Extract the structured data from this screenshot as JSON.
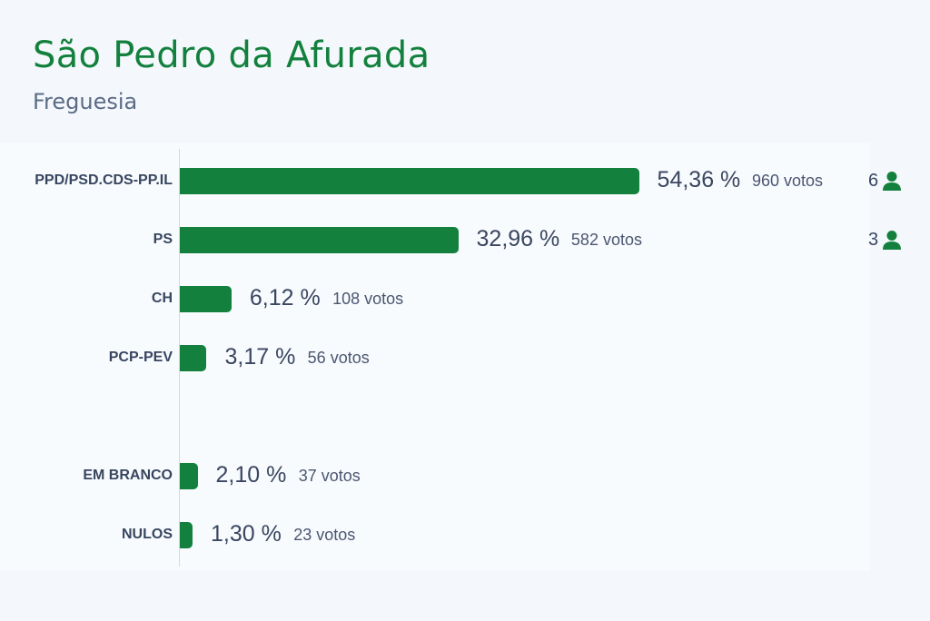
{
  "header": {
    "title": "São Pedro da Afurada",
    "subtitle": "Freguesia"
  },
  "colors": {
    "bar": "#13813d",
    "title": "#13813d",
    "icon": "#13813d"
  },
  "chart_data": {
    "type": "bar",
    "orientation": "horizontal",
    "title": "São Pedro da Afurada",
    "subtitle": "Freguesia",
    "categories": [
      "PPD/PSD.CDS-PP.IL",
      "PS",
      "CH",
      "PCP-PEV",
      "EM BRANCO",
      "NULOS"
    ],
    "values": [
      54.36,
      32.96,
      6.12,
      3.17,
      2.1,
      1.3
    ],
    "series": [
      {
        "values": [
          54.36,
          32.96,
          6.12,
          3.17,
          2.1,
          1.3
        ]
      }
    ],
    "rows": [
      {
        "label": "PPD/PSD.CDS-PP.IL",
        "pct": 54.36,
        "pct_text": "54,36 %",
        "votes_text": "960 votos",
        "seats": "6",
        "group": 0
      },
      {
        "label": "PS",
        "pct": 32.96,
        "pct_text": "32,96 %",
        "votes_text": "582 votos",
        "seats": "3",
        "group": 0
      },
      {
        "label": "CH",
        "pct": 6.12,
        "pct_text": "6,12 %",
        "votes_text": "108 votos",
        "seats": "",
        "group": 0
      },
      {
        "label": "PCP-PEV",
        "pct": 3.17,
        "pct_text": "3,17 %",
        "votes_text": "56 votos",
        "seats": "",
        "group": 0
      },
      {
        "label": "EM BRANCO",
        "pct": 2.1,
        "pct_text": "2,10 %",
        "votes_text": "37 votos",
        "seats": "",
        "group": 1
      },
      {
        "label": "NULOS",
        "pct": 1.3,
        "pct_text": "1,30 %",
        "votes_text": "23 votos",
        "seats": "",
        "group": 1
      }
    ],
    "xlim": [
      0,
      60
    ],
    "grid": false,
    "legend": "none"
  }
}
